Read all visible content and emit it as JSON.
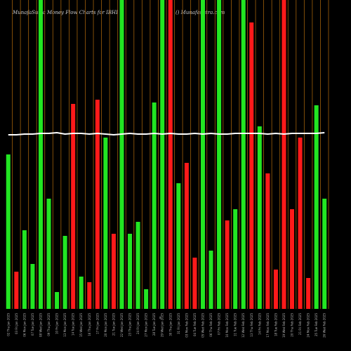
{
  "chart_data": {
    "type": "bar",
    "title": "MunafaSutra  Money Flow  Charts for IBHI",
    "subtitle": "() Munafasutra.com",
    "x_axis_symbol": "$",
    "categories": [
      "02 Thu Jan 2025",
      "03 Fri Jan 2025",
      "06 Mon Jan 2025",
      "07 Tue Jan 2025",
      "08 Wed Jan 2025",
      "09 Thu Jan 2025",
      "10 Fri Jan 2025",
      "13 Mon Jan 2025",
      "14 Tue Jan 2025",
      "15 Wed Jan 2025",
      "16 Thu Jan 2025",
      "17 Fri Jan 2025",
      "20 Mon Jan 2025",
      "21 Tue Jan 2025",
      "22 Wed Jan 2025",
      "23 Thu Jan 2025",
      "24 Fri Jan 2025",
      "27 Mon Jan 2025",
      "28 Tue Jan 2025",
      "29 Wed Jan 2025",
      "30 Thu Jan 2025",
      "31 Fri Jan 2025",
      "03 Mon Feb 2025",
      "04 Tue Feb 2025",
      "05 Wed Feb 2025",
      "06 Thu Feb 2025",
      "07 Fri Feb 2025",
      "10 Mon Feb 2025",
      "11 Tue Feb 2025",
      "12 Wed Feb 2025",
      "13 Thu Feb 2025",
      "14 Fri Feb 2025",
      "17 Mon Feb 2025",
      "18 Tue Feb 2025",
      "19 Wed Feb 2025",
      "20 Thu Feb 2025",
      "21 Fri Feb 2025",
      "24 Mon Feb 2025",
      "25 Tue Feb 2025",
      "26 Wed Feb 2025"
    ],
    "values": [
      220,
      53,
      112,
      64,
      440,
      157,
      24,
      104,
      292,
      46,
      38,
      298,
      244,
      107,
      440,
      107,
      124,
      28,
      294,
      440,
      440,
      179,
      208,
      73,
      440,
      83,
      440,
      126,
      142,
      440,
      408,
      260,
      193,
      56,
      440,
      142,
      244,
      44,
      290,
      157
    ],
    "colors": [
      "#22e622",
      "#ff1a1a",
      "#22e622",
      "#22e622",
      "#22e622",
      "#22e622",
      "#22e622",
      "#22e622",
      "#ff1a1a",
      "#22e622",
      "#ff1a1a",
      "#ff1a1a",
      "#22e622",
      "#ff1a1a",
      "#22e622",
      "#22e622",
      "#22e622",
      "#22e622",
      "#22e622",
      "#22e622",
      "#ff1a1a",
      "#22e622",
      "#ff1a1a",
      "#ff1a1a",
      "#22e622",
      "#22e622",
      "#22e622",
      "#ff1a1a",
      "#22e622",
      "#22e622",
      "#ff1a1a",
      "#22e622",
      "#ff1a1a",
      "#ff1a1a",
      "#ff1a1a",
      "#ff1a1a",
      "#ff1a1a",
      "#ff1a1a",
      "#22e622",
      "#22e622"
    ],
    "line": {
      "color": "#ffffff",
      "values": [
        248,
        248,
        249,
        249,
        250,
        250,
        251,
        249,
        250,
        250,
        249,
        250,
        249,
        248,
        249,
        250,
        249,
        249,
        250,
        249,
        250,
        249,
        249,
        250,
        249,
        250,
        249,
        249,
        250,
        250,
        250,
        250,
        249,
        250,
        249,
        250,
        250,
        250,
        250,
        251
      ]
    },
    "ylim": [
      0,
      440
    ],
    "grid": true,
    "grid_color": "#a0600a"
  }
}
